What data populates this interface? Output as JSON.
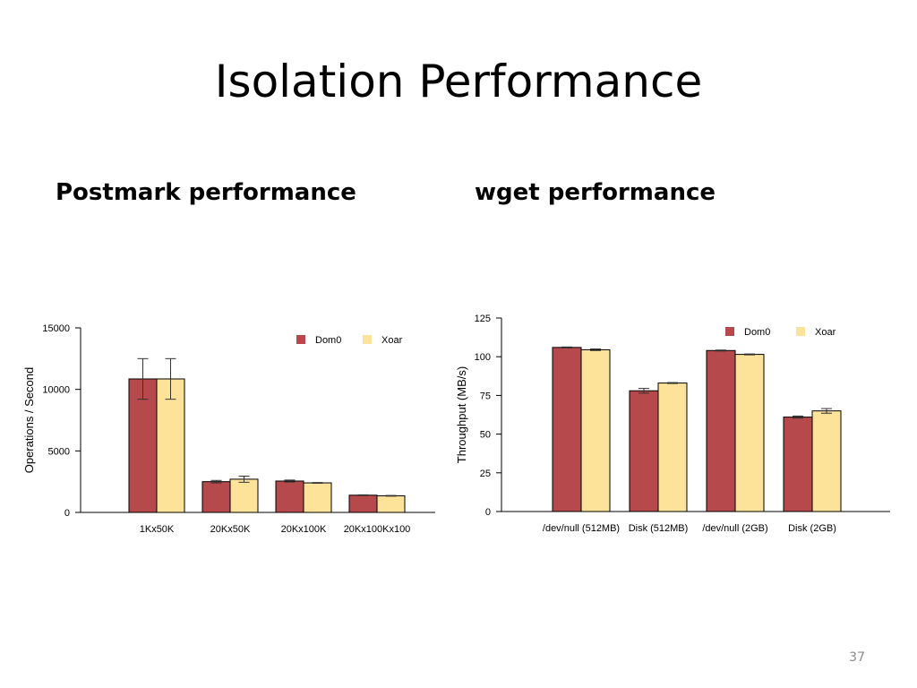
{
  "slide": {
    "title": "Isolation Performance",
    "left_heading": "Postmark performance",
    "right_heading": "wget performance",
    "page_number": "37"
  },
  "colors": {
    "dom0": "#b5494b",
    "xoar": "#fde399",
    "axis": "#000000"
  },
  "chart_data": [
    {
      "type": "bar",
      "categories": [
        "1Kx50K",
        "20Kx50K",
        "20Kx100K",
        "20Kx100Kx100"
      ],
      "series": [
        {
          "name": "Dom0",
          "values": [
            10850,
            2500,
            2550,
            1400
          ],
          "errors": [
            1650,
            100,
            80,
            30
          ]
        },
        {
          "name": "Xoar",
          "values": [
            10850,
            2700,
            2400,
            1350
          ],
          "errors": [
            1650,
            250,
            30,
            30
          ]
        }
      ],
      "title": "",
      "xlabel": "",
      "ylabel": "Operations / Second",
      "ylim": [
        0,
        15000
      ],
      "yticks": [
        0,
        5000,
        10000,
        15000
      ],
      "legend": "top-right",
      "grid": false
    },
    {
      "type": "bar",
      "categories": [
        "/dev/null (512MB)",
        "Disk (512MB)",
        "/dev/null (2GB)",
        "Disk (2GB)"
      ],
      "series": [
        {
          "name": "Dom0",
          "values": [
            106,
            78,
            104,
            61
          ],
          "errors": [
            0.3,
            1.5,
            0.3,
            0.7
          ]
        },
        {
          "name": "Xoar",
          "values": [
            104.5,
            83,
            101.5,
            65
          ],
          "errors": [
            0.5,
            0.3,
            0.3,
            1.5
          ]
        }
      ],
      "title": "",
      "xlabel": "",
      "ylabel": "Throughput (MB/s)",
      "ylim": [
        0,
        125
      ],
      "yticks": [
        0,
        25,
        50,
        75,
        100,
        125
      ],
      "legend": "top-right",
      "grid": false
    }
  ]
}
